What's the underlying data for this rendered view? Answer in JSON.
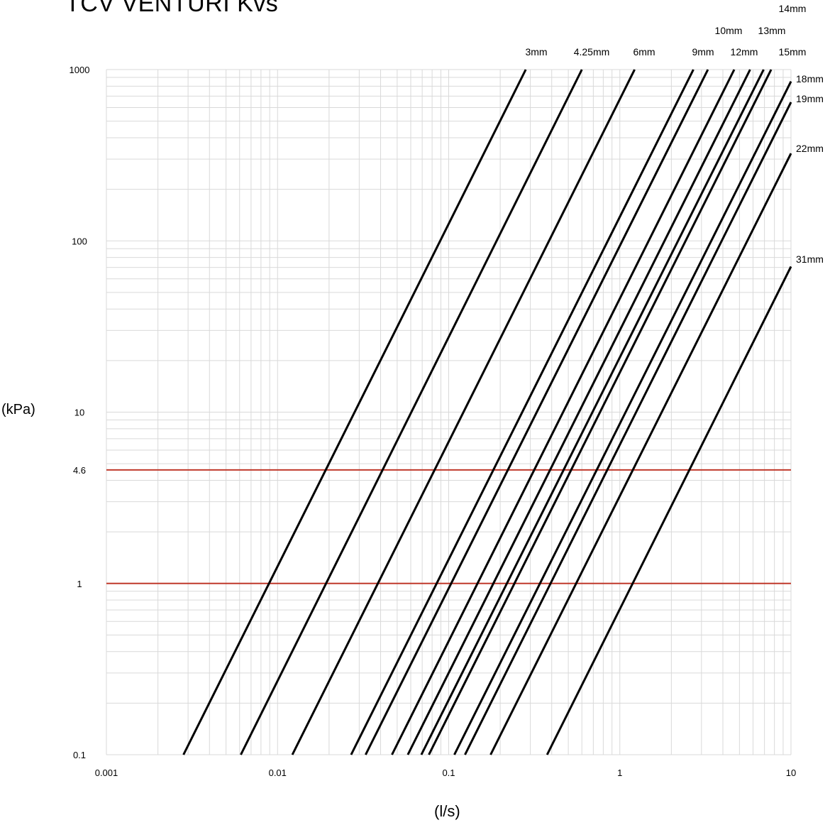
{
  "chart_data": {
    "type": "line",
    "title": "TCV VENTURI Kvs",
    "xlabel": "(l/s)",
    "ylabel": "(kPa)",
    "x_scale": "log",
    "y_scale": "log",
    "xlim": [
      0.001,
      10
    ],
    "ylim": [
      0.1,
      1000
    ],
    "grid": true,
    "x_ticks": [
      "0.001",
      "0.01",
      "0.1",
      "1",
      "10"
    ],
    "y_ticks": [
      "0.1",
      "1",
      "4.6",
      "10",
      "100",
      "1000"
    ],
    "reference_lines": [
      {
        "y": 4.6,
        "color": "#c0392b"
      },
      {
        "y": 1,
        "color": "#c0392b"
      }
    ],
    "series": [
      {
        "name": "3mm",
        "points": [
          [
            0.00282,
            0.1
          ],
          [
            0.282,
            1000
          ]
        ]
      },
      {
        "name": "4.25mm",
        "points": [
          [
            0.0061,
            0.1
          ],
          [
            0.6,
            1000
          ]
        ]
      },
      {
        "name": "6mm",
        "points": [
          [
            0.0122,
            0.1
          ],
          [
            1.22,
            1000
          ]
        ]
      },
      {
        "name": "9mm",
        "points": [
          [
            0.0269,
            0.1
          ],
          [
            2.69,
            1000
          ]
        ]
      },
      {
        "name": "10mm",
        "points": [
          [
            0.0327,
            0.1
          ],
          [
            3.27,
            1000
          ]
        ]
      },
      {
        "name": "12mm",
        "points": [
          [
            0.0466,
            0.1
          ],
          [
            4.66,
            1000
          ]
        ]
      },
      {
        "name": "13mm",
        "points": [
          [
            0.0577,
            0.1
          ],
          [
            5.77,
            1000
          ]
        ]
      },
      {
        "name": "14mm",
        "points": [
          [
            0.0692,
            0.1
          ],
          [
            6.92,
            1000
          ]
        ]
      },
      {
        "name": "15mm",
        "points": [
          [
            0.0766,
            0.1
          ],
          [
            7.66,
            1000
          ]
        ]
      },
      {
        "name": "18mm",
        "points": [
          [
            0.1079,
            0.1
          ],
          [
            10,
            853
          ]
        ]
      },
      {
        "name": "19mm",
        "points": [
          [
            0.1245,
            0.1
          ],
          [
            10,
            645
          ]
        ]
      },
      {
        "name": "22mm",
        "points": [
          [
            0.1757,
            0.1
          ],
          [
            10,
            324
          ]
        ]
      },
      {
        "name": "31mm",
        "points": [
          [
            0.3758,
            0.1
          ],
          [
            10,
            70.8
          ]
        ]
      }
    ]
  },
  "colors": {
    "series": "#000000",
    "reference": "#c0392b",
    "grid": "#d9d9d9"
  }
}
